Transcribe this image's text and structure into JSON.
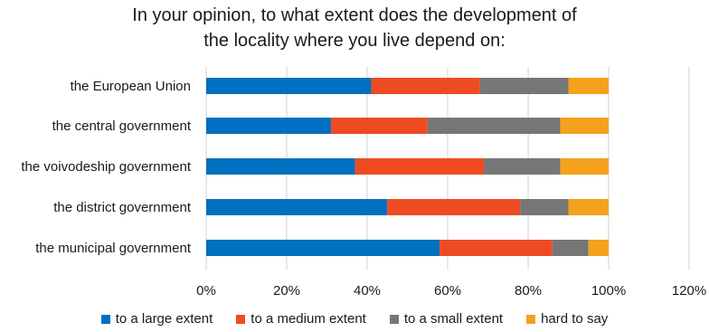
{
  "chart_data": {
    "type": "bar",
    "orientation": "horizontal",
    "stacked": true,
    "title": "In your opinion, to what extent does the development of the locality where you live depend on:",
    "title_lines": [
      "In your opinion, to what extent does the development of",
      "the locality where you live depend on:"
    ],
    "categories": [
      "the European Union",
      "the central government",
      "the voivodeship government",
      "the district government",
      "the municipal government"
    ],
    "series": [
      {
        "name": "to a large extent",
        "color": "#0070C0",
        "values": [
          41,
          31,
          37,
          45,
          58
        ]
      },
      {
        "name": "to a medium extent",
        "color": "#EE4B22",
        "values": [
          27,
          24,
          32,
          33,
          28
        ]
      },
      {
        "name": "to a small extent",
        "color": "#767676",
        "values": [
          22,
          33,
          19,
          12,
          9
        ]
      },
      {
        "name": "hard to say",
        "color": "#F5A11C",
        "values": [
          10,
          12,
          12,
          10,
          5
        ]
      }
    ],
    "xlim": [
      0,
      120
    ],
    "xticks": [
      "0%",
      "20%",
      "40%",
      "60%",
      "80%",
      "100%",
      "120%"
    ],
    "xtick_values": [
      0,
      20,
      40,
      60,
      80,
      100,
      120
    ],
    "grid": true,
    "legend_position": "bottom"
  }
}
